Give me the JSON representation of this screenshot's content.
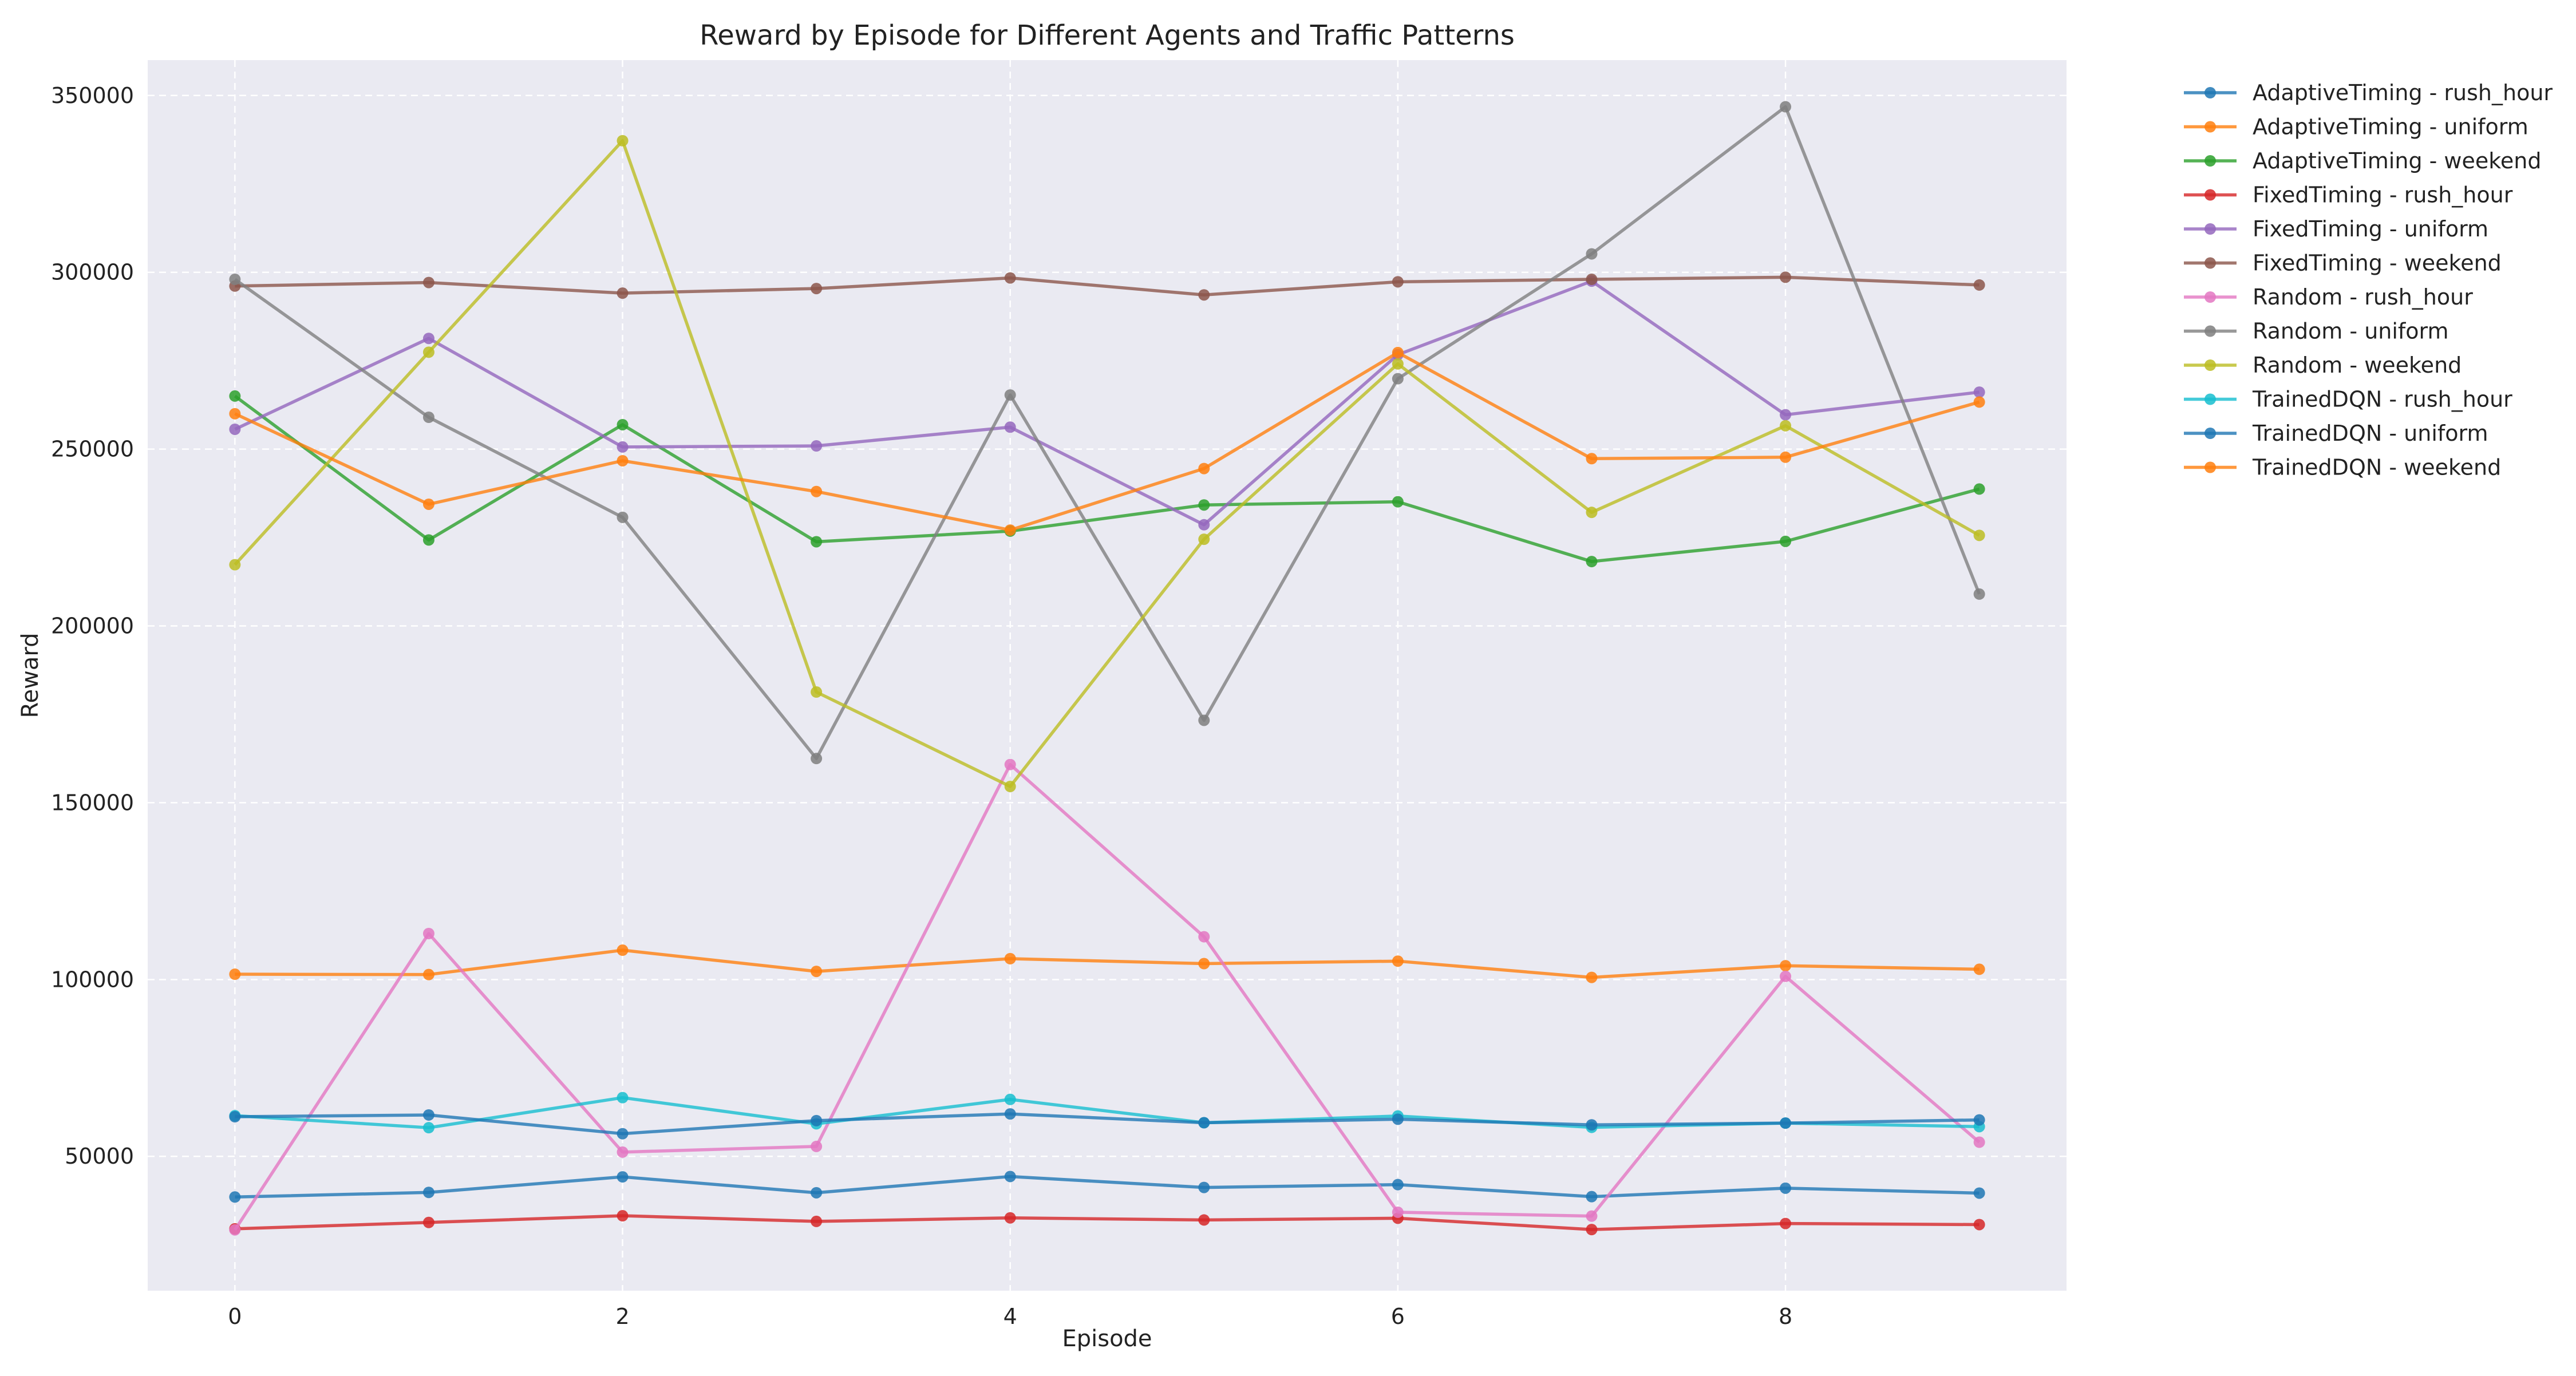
{
  "chart_data": {
    "type": "line",
    "title": "Reward by Episode for Different Agents and Traffic Patterns",
    "xlabel": "Episode",
    "ylabel": "Reward",
    "xlim": [
      -0.45,
      9.45
    ],
    "ylim": [
      12000,
      360000
    ],
    "xticks": [
      0,
      2,
      4,
      6,
      8
    ],
    "yticks": [
      50000,
      100000,
      150000,
      200000,
      250000,
      300000,
      350000
    ],
    "grid": true,
    "legend_position": "outside-top-right",
    "x": [
      0,
      1,
      2,
      3,
      4,
      5,
      6,
      7,
      8,
      9
    ],
    "series": [
      {
        "name": "AdaptiveTiming - rush_hour",
        "color": "#1f77b4",
        "values": [
          38500,
          39800,
          44200,
          39700,
          44300,
          41200,
          42000,
          38600,
          41000,
          39600
        ]
      },
      {
        "name": "AdaptiveTiming - uniform",
        "color": "#ff7f0e",
        "values": [
          101500,
          101400,
          108300,
          102300,
          105900,
          104500,
          105200,
          100600,
          103900,
          102900
        ]
      },
      {
        "name": "AdaptiveTiming - weekend",
        "color": "#2ca02c",
        "values": [
          265000,
          224300,
          256900,
          223800,
          226800,
          234200,
          235100,
          218200,
          223900,
          238700
        ]
      },
      {
        "name": "FixedTiming - rush_hour",
        "color": "#d62728",
        "values": [
          29500,
          31300,
          33200,
          31600,
          32600,
          32000,
          32500,
          29300,
          31000,
          30700
        ]
      },
      {
        "name": "FixedTiming - uniform",
        "color": "#9467bd",
        "values": [
          255600,
          281300,
          250600,
          250900,
          256200,
          228600,
          276700,
          297500,
          259700,
          266100
        ]
      },
      {
        "name": "FixedTiming - weekend",
        "color": "#8c564b",
        "values": [
          296100,
          297100,
          294100,
          295400,
          298400,
          293600,
          297300,
          298000,
          298600,
          296400
        ]
      },
      {
        "name": "Random - rush_hour",
        "color": "#e377c2",
        "values": [
          29200,
          113000,
          51200,
          52800,
          160800,
          112100,
          34200,
          33100,
          100900,
          54000
        ]
      },
      {
        "name": "Random - uniform",
        "color": "#7f7f7f",
        "values": [
          298000,
          259000,
          230700,
          162500,
          265300,
          173300,
          269900,
          305200,
          346800,
          209000
        ]
      },
      {
        "name": "Random - weekend",
        "color": "#bcbd22",
        "values": [
          217300,
          277400,
          337200,
          181300,
          154600,
          224500,
          274100,
          232100,
          256600,
          225600
        ]
      },
      {
        "name": "TrainedDQN - rush_hour",
        "color": "#17becf",
        "values": [
          61500,
          58100,
          66600,
          59200,
          66100,
          59500,
          61400,
          58200,
          59400,
          58400
        ]
      },
      {
        "name": "TrainedDQN - uniform",
        "color": "#1f77b4",
        "values": [
          61200,
          61700,
          56400,
          60100,
          62000,
          59500,
          60500,
          58900,
          59400,
          60300
        ]
      },
      {
        "name": "TrainedDQN - weekend",
        "color": "#ff7f0e",
        "values": [
          260000,
          234400,
          246700,
          238000,
          227100,
          244500,
          277300,
          247300,
          247700,
          263300
        ]
      }
    ]
  }
}
